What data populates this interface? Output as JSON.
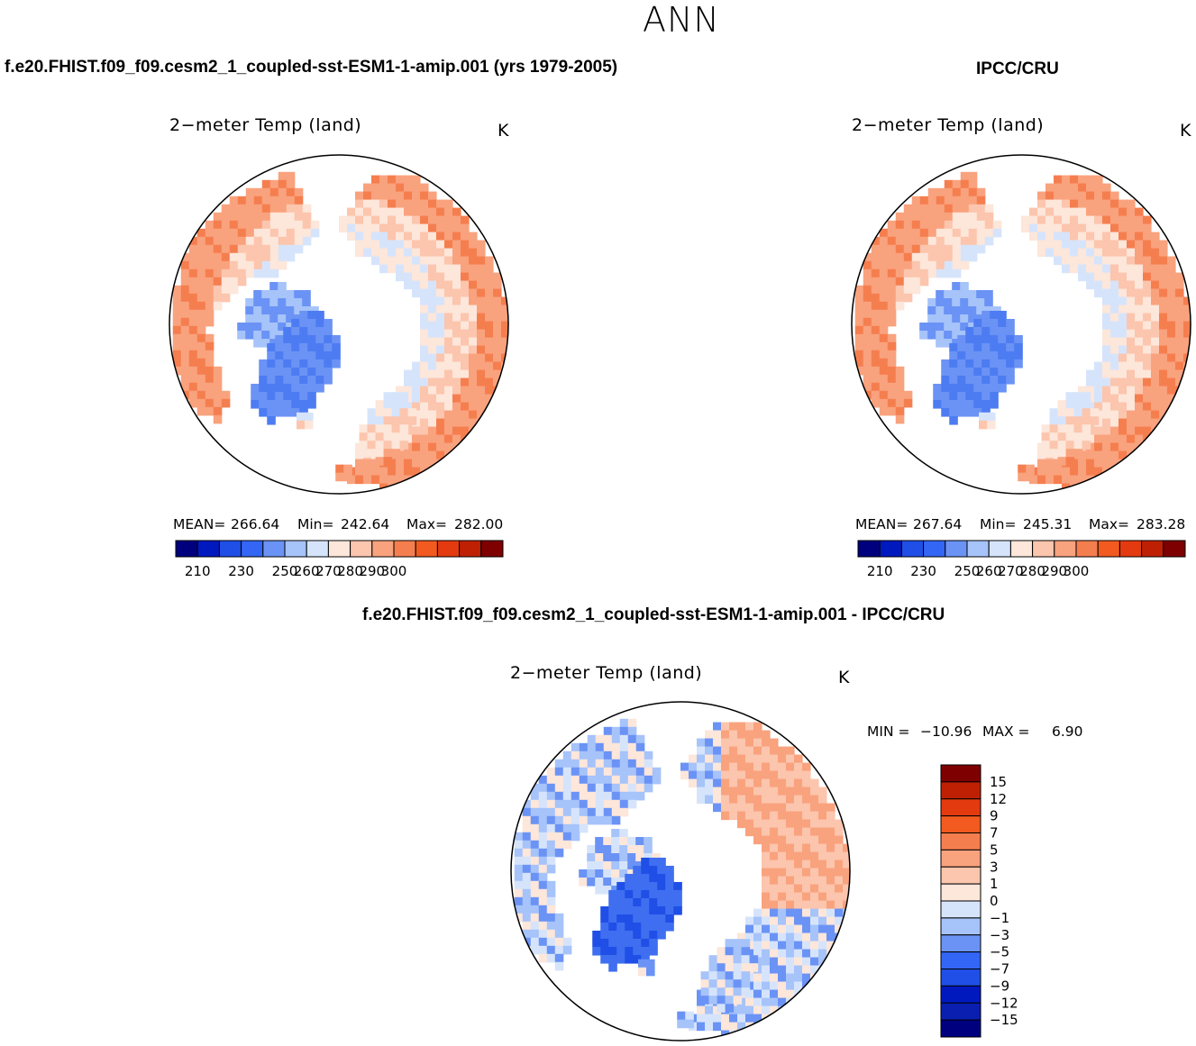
{
  "page": {
    "season": "ANN",
    "case_title": "f.e20.FHIST.f09_f09.cesm2_1_coupled-sst-ESM1-1-amip.001 (yrs 1979-2005)",
    "obs_title": "IPCC/CRU",
    "diff_title": "f.e20.FHIST.f09_f09.cesm2_1_coupled-sst-ESM1-1-amip.001 - IPCC/CRU"
  },
  "chart_data": [
    {
      "type": "heatmap",
      "projection": "north polar stereographic",
      "title": "2−meter Temp (land)",
      "units": "K",
      "stats": {
        "mean_label": "MEAN=",
        "mean": "266.64",
        "min_label": "Min=",
        "min": "242.64",
        "max_label": "Max=",
        "max": "282.00"
      },
      "colorbar": {
        "orientation": "horizontal",
        "tick_labels": [
          "210",
          "230",
          "250",
          "260",
          "270",
          "280",
          "290",
          "300"
        ],
        "colors": [
          "#00007f",
          "#0019bf",
          "#1f4fe6",
          "#3366f5",
          "#6b93f5",
          "#a6c3fa",
          "#d6e4fb",
          "#fde6da",
          "#fcc5ad",
          "#f9a27e",
          "#f57e4f",
          "#f25a1f",
          "#e43a10",
          "#bf2003",
          "#7f0000"
        ]
      }
    },
    {
      "type": "heatmap",
      "projection": "north polar stereographic",
      "title": "2−meter Temp (land)",
      "units": "K",
      "stats": {
        "mean_label": "MEAN=",
        "mean": "267.64",
        "min_label": "Min=",
        "min": "245.31",
        "max_label": "Max=",
        "max": "283.28"
      },
      "colorbar": {
        "orientation": "horizontal",
        "tick_labels": [
          "210",
          "230",
          "250",
          "260",
          "270",
          "280",
          "290",
          "300"
        ],
        "colors": [
          "#00007f",
          "#0019bf",
          "#1f4fe6",
          "#3366f5",
          "#6b93f5",
          "#a6c3fa",
          "#d6e4fb",
          "#fde6da",
          "#fcc5ad",
          "#f9a27e",
          "#f57e4f",
          "#f25a1f",
          "#e43a10",
          "#bf2003",
          "#7f0000"
        ]
      }
    },
    {
      "type": "heatmap",
      "projection": "north polar stereographic",
      "title": "2−meter Temp (land)",
      "units": "K",
      "stats": {
        "min_label": "MIN =",
        "min": "−10.96",
        "max_label": "MAX =",
        "max": "6.90"
      },
      "colorbar": {
        "orientation": "vertical",
        "tick_labels": [
          "15",
          "12",
          "9",
          "7",
          "5",
          "3",
          "1",
          "0",
          "−1",
          "−3",
          "−5",
          "−7",
          "−9",
          "−12",
          "−15"
        ],
        "colors": [
          "#7f0000",
          "#bf2003",
          "#e43a10",
          "#f25a1f",
          "#f57e4f",
          "#f9a27e",
          "#fcc5ad",
          "#fde6da",
          "#d6e4fb",
          "#a6c3fa",
          "#6b93f5",
          "#3366f5",
          "#1f4fe6",
          "#0019bf",
          "#0a1eb0",
          "#00007f"
        ]
      }
    }
  ],
  "palette": {
    "land_warm": "#f7a985",
    "land_mild": "#fcd3bd",
    "land_cool": "#d6e4fb",
    "land_cold": "#a6c3fa",
    "ice": "#3f6ff0",
    "diff_neg": "#b7cffa",
    "diff_pos": "#fcc5ad"
  }
}
